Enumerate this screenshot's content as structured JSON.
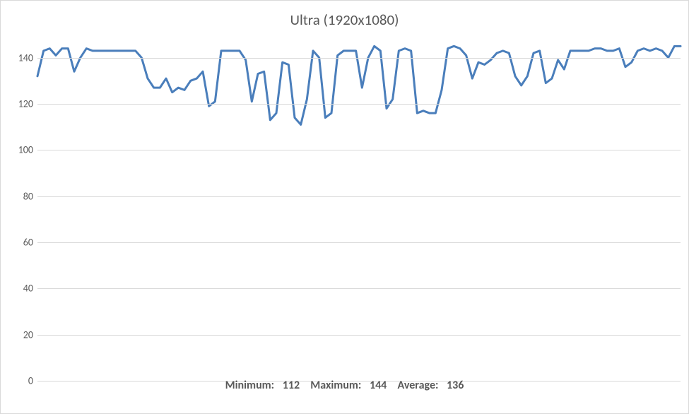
{
  "chart": {
    "type": "line",
    "title": "Ultra (1920x1080)",
    "title_fontsize": 21,
    "title_color": "#595959",
    "background_color": "#ffffff",
    "border_color": "#d9d9d9",
    "grid_color": "#d9d9d9",
    "axis_label_color": "#595959",
    "axis_label_fontsize": 14,
    "line_color": "#4a7ebb",
    "line_width": 3,
    "ylim": [
      0,
      150
    ],
    "ytick_step": 20,
    "yticks": [
      0,
      20,
      40,
      60,
      80,
      100,
      120,
      140
    ],
    "values": [
      132,
      143,
      144,
      141,
      144,
      144,
      134,
      140,
      144,
      143,
      143,
      143,
      143,
      143,
      143,
      143,
      143,
      140,
      131,
      127,
      127,
      131,
      125,
      127,
      126,
      130,
      131,
      134,
      119,
      121,
      143,
      143,
      143,
      143,
      139,
      121,
      133,
      134,
      113,
      116,
      138,
      137,
      114,
      111,
      122,
      143,
      140,
      114,
      116,
      141,
      143,
      143,
      143,
      127,
      140,
      145,
      143,
      118,
      122,
      143,
      144,
      143,
      116,
      117,
      116,
      116,
      126,
      144,
      145,
      144,
      141,
      131,
      138,
      137,
      139,
      142,
      143,
      142,
      132,
      128,
      132,
      142,
      143,
      129,
      131,
      139,
      135,
      143,
      143,
      143,
      143,
      144,
      144,
      143,
      143,
      144,
      136,
      138,
      143,
      144,
      143,
      144,
      143,
      140,
      145,
      145
    ],
    "stats": {
      "minimum_label": "Minimum:",
      "minimum_value": "112",
      "maximum_label": "Maximum:",
      "maximum_value": "144",
      "average_label": "Average:",
      "average_value": "136"
    },
    "stats_fontsize": 16,
    "stats_color": "#595959"
  }
}
